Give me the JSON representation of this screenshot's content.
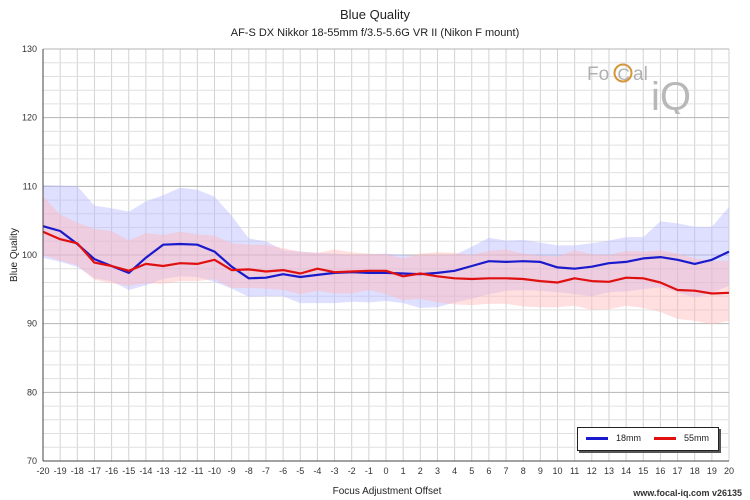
{
  "footer": "www.focal-iq.com  v26135",
  "logo": {
    "text_left": "Fo",
    "text_c": "C",
    "text_right": "al",
    "text_iq": "iQ"
  },
  "chart_data": {
    "type": "line",
    "title": "Blue Quality",
    "subtitle": "AF-S DX Nikkor 18-55mm f/3.5-5.6G VR II (Nikon F mount)",
    "xlabel": "Focus Adjustment Offset",
    "ylabel": "Blue Quality",
    "xlim": [
      -20,
      20
    ],
    "ylim": [
      70,
      130
    ],
    "yticks": [
      70,
      80,
      90,
      100,
      110,
      120,
      130
    ],
    "grid": true,
    "legend_position": "bottom-right",
    "x": [
      -20,
      -19,
      -18,
      -17,
      -16,
      -15,
      -14,
      -13,
      -12,
      -11,
      -10,
      -9,
      -8,
      -7,
      -6,
      -5,
      -4,
      -3,
      -2,
      -1,
      0,
      1,
      2,
      3,
      4,
      5,
      6,
      7,
      8,
      9,
      10,
      11,
      12,
      13,
      14,
      15,
      16,
      17,
      18,
      19,
      20
    ],
    "series": [
      {
        "name": "18mm",
        "color": "#1a1acc",
        "band_color": "#b8b8ff",
        "values": [
          104.2,
          103.5,
          101.6,
          99.4,
          98.4,
          97.4,
          99.6,
          101.5,
          101.6,
          101.5,
          100.5,
          98.3,
          96.6,
          96.7,
          97.2,
          96.8,
          97.1,
          97.4,
          97.5,
          97.4,
          97.4,
          97.3,
          97.2,
          97.4,
          97.7,
          98.4,
          99.1,
          99.0,
          99.1,
          99.0,
          98.2,
          98.0,
          98.3,
          98.8,
          99.0,
          99.5,
          99.7,
          99.3,
          98.7,
          99.3,
          100.5
        ],
        "upper": [
          110.2,
          110.1,
          110.0,
          107.2,
          106.8,
          106.3,
          107.8,
          108.7,
          109.8,
          109.5,
          108.5,
          105.7,
          102.4,
          102.0,
          100.7,
          100.5,
          100.3,
          100.2,
          100.0,
          100.1,
          100.2,
          100.0,
          99.9,
          100.0,
          100.0,
          101.2,
          102.5,
          102.1,
          102.2,
          101.8,
          101.4,
          101.4,
          101.7,
          102.1,
          102.6,
          102.6,
          104.9,
          104.6,
          104.1,
          104.1,
          107.0
        ],
        "lower": [
          99.6,
          99.0,
          98.3,
          96.6,
          96.2,
          94.9,
          95.6,
          96.5,
          96.9,
          96.8,
          96.1,
          95.1,
          93.9,
          94.0,
          94.0,
          93.0,
          93.0,
          93.0,
          93.2,
          93.1,
          93.3,
          93.0,
          92.3,
          92.4,
          93.1,
          93.6,
          94.3,
          94.8,
          94.9,
          94.8,
          94.6,
          94.3,
          94.0,
          94.6,
          94.7,
          95.0,
          95.3,
          94.6,
          93.8,
          94.5,
          95.5
        ]
      },
      {
        "name": "55mm",
        "color": "#e01010",
        "band_color": "#ffb8b8",
        "values": [
          103.4,
          102.3,
          101.7,
          98.9,
          98.4,
          97.7,
          98.7,
          98.4,
          98.8,
          98.7,
          99.3,
          97.8,
          97.9,
          97.6,
          97.8,
          97.3,
          98.0,
          97.5,
          97.6,
          97.7,
          97.7,
          96.9,
          97.3,
          96.9,
          96.6,
          96.5,
          96.6,
          96.6,
          96.5,
          96.2,
          96.0,
          96.6,
          96.2,
          96.1,
          96.7,
          96.6,
          96.0,
          94.9,
          94.8,
          94.4,
          94.5
        ],
        "upper": [
          108.5,
          105.9,
          104.7,
          103.8,
          103.5,
          102.1,
          103.2,
          102.9,
          103.4,
          103.0,
          102.8,
          101.7,
          101.5,
          101.5,
          101.0,
          100.5,
          100.3,
          100.8,
          100.4,
          100.2,
          100.1,
          99.5,
          100.2,
          100.4,
          100.3,
          100.0,
          100.6,
          100.8,
          100.2,
          99.9,
          99.8,
          100.7,
          100.1,
          100.0,
          100.6,
          100.5,
          100.7,
          100.2,
          99.5,
          99.1,
          99.2
        ],
        "lower": [
          100.0,
          99.2,
          98.5,
          96.4,
          95.9,
          95.5,
          95.9,
          95.8,
          96.2,
          96.2,
          96.5,
          95.2,
          95.2,
          95.1,
          94.9,
          94.3,
          94.8,
          94.4,
          94.4,
          94.9,
          94.3,
          93.4,
          93.6,
          93.1,
          92.8,
          92.7,
          92.9,
          92.9,
          92.5,
          92.4,
          92.4,
          92.6,
          92.0,
          92.1,
          92.6,
          92.3,
          91.7,
          90.7,
          90.4,
          89.9,
          90.4
        ]
      }
    ]
  }
}
